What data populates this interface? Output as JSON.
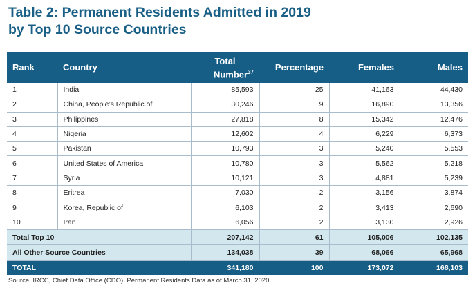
{
  "title_line1": "Table 2: Permanent Residents Admitted in 2019",
  "title_line2": "by Top 10 Source Countries",
  "headers": {
    "rank": "Rank",
    "country": "Country",
    "total_line1": "Total",
    "total_line2": "Number",
    "total_footnote": "37",
    "percentage": "Percentage",
    "females": "Females",
    "males": "Males"
  },
  "rows": [
    {
      "rank": "1",
      "country": "India",
      "total": "85,593",
      "percentage": "25",
      "females": "41,163",
      "males": "44,430"
    },
    {
      "rank": "2",
      "country": "China, People’s Republic of",
      "total": "30,246",
      "percentage": "9",
      "females": "16,890",
      "males": "13,356"
    },
    {
      "rank": "3",
      "country": "Philippines",
      "total": "27,818",
      "percentage": "8",
      "females": "15,342",
      "males": "12,476"
    },
    {
      "rank": "4",
      "country": "Nigeria",
      "total": "12,602",
      "percentage": "4",
      "females": "6,229",
      "males": "6,373"
    },
    {
      "rank": "5",
      "country": "Pakistan",
      "total": "10,793",
      "percentage": "3",
      "females": "5,240",
      "males": "5,553"
    },
    {
      "rank": "6",
      "country": "United States of America",
      "total": "10,780",
      "percentage": "3",
      "females": "5,562",
      "males": "5,218"
    },
    {
      "rank": "7",
      "country": "Syria",
      "total": "10,121",
      "percentage": "3",
      "females": "4,881",
      "males": "5,239"
    },
    {
      "rank": "8",
      "country": "Eritrea",
      "total": "7,030",
      "percentage": "2",
      "females": "3,156",
      "males": "3,874"
    },
    {
      "rank": "9",
      "country": "Korea, Republic of",
      "total": "6,103",
      "percentage": "2",
      "females": "3,413",
      "males": "2,690"
    },
    {
      "rank": "10",
      "country": "Iran",
      "total": "6,056",
      "percentage": "2",
      "females": "3,130",
      "males": "2,926"
    }
  ],
  "subtotals": [
    {
      "label": "Total Top 10",
      "total": "207,142",
      "percentage": "61",
      "females": "105,006",
      "males": "102,135"
    },
    {
      "label": "All Other Source Countries",
      "total": "134,038",
      "percentage": "39",
      "females": "68,066",
      "males": "65,968"
    }
  ],
  "grand_total": {
    "label": "TOTAL",
    "total": "341,180",
    "percentage": "100",
    "females": "173,072",
    "males": "168,103"
  },
  "source": "Source: IRCC, Chief Data Office (CDO), Permanent Residents Data as of March 31, 2020.",
  "colors": {
    "header_bg": "#165e86",
    "title": "#1a5f86",
    "subtotal_bg": "#d3e7ef"
  }
}
